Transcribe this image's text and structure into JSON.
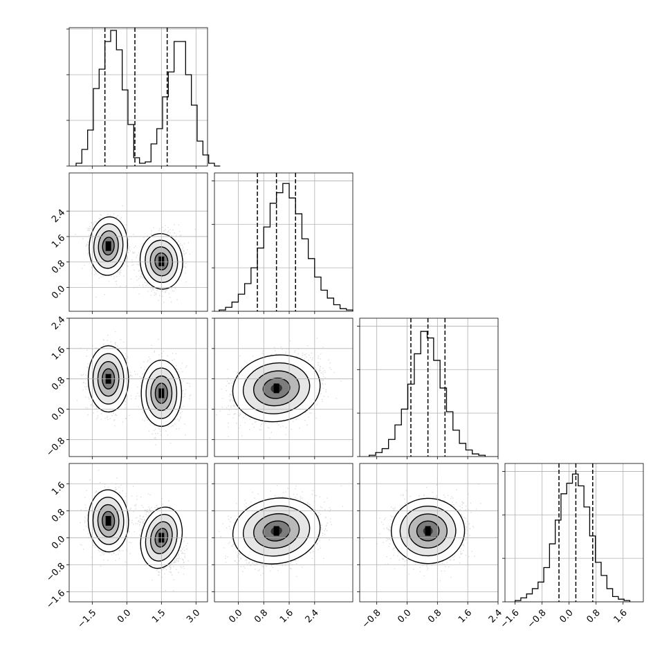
{
  "chart_data": {
    "type": "corner",
    "description_free": true,
    "ndim": 4,
    "grid": true,
    "params": [
      {
        "range": [
          -2.5,
          3.5
        ],
        "ticks": [
          -1.5,
          0.0,
          1.5,
          3.0
        ],
        "tick_labels": [
          "−1.5",
          "0.0",
          "1.5",
          "3.0"
        ],
        "quantiles": [
          -0.95,
          0.35,
          1.75
        ],
        "hist": {
          "bin_start": -2.2,
          "bin_width": 0.25,
          "counts": [
            0.02,
            0.12,
            0.26,
            0.56,
            0.7,
            0.9,
            0.98,
            0.84,
            0.55,
            0.3,
            0.06,
            0.02,
            0.03,
            0.16,
            0.27,
            0.5,
            0.68,
            0.9,
            0.9,
            0.66,
            0.44,
            0.18,
            0.08,
            0.02,
            0.0
          ]
        },
        "hist_ylim": [
          0,
          1.0
        ]
      },
      {
        "range": [
          -0.75,
          3.6
        ],
        "ticks": [
          0.0,
          0.8,
          1.6,
          2.4
        ],
        "tick_labels": [
          "0.0",
          "0.8",
          "1.6",
          "2.4"
        ],
        "quantiles": [
          0.6,
          1.2,
          1.8
        ],
        "hist": {
          "bin_start": -0.6,
          "bin_width": 0.2,
          "counts": [
            0.01,
            0.03,
            0.07,
            0.13,
            0.21,
            0.33,
            0.48,
            0.64,
            0.82,
            0.9,
            0.97,
            0.86,
            0.74,
            0.55,
            0.4,
            0.26,
            0.16,
            0.1,
            0.05,
            0.02,
            0.01
          ]
        },
        "hist_ylim": [
          0,
          1.05
        ]
      },
      {
        "range": [
          -1.25,
          2.4
        ],
        "ticks": [
          -0.8,
          0.0,
          0.8,
          1.6,
          2.4
        ],
        "tick_labels": [
          "−0.8",
          "0.0",
          "0.8",
          "1.6",
          "2.4"
        ],
        "quantiles": [
          0.1,
          0.55,
          1.0
        ],
        "hist": {
          "bin_start": -1.0,
          "bin_width": 0.17,
          "counts": [
            0.01,
            0.03,
            0.06,
            0.13,
            0.24,
            0.36,
            0.55,
            0.78,
            0.95,
            0.9,
            0.73,
            0.52,
            0.34,
            0.2,
            0.1,
            0.05,
            0.02,
            0.01
          ]
        },
        "hist_ylim": [
          0,
          1.05
        ]
      },
      {
        "range": [
          -1.9,
          2.2
        ],
        "ticks": [
          -1.6,
          -0.8,
          0.0,
          0.8,
          1.6
        ],
        "tick_labels": [
          "−1.6",
          "−0.8",
          "0.0",
          "0.8",
          "1.6"
        ],
        "quantiles": [
          -0.3,
          0.2,
          0.7
        ],
        "hist": {
          "bin_start": -1.6,
          "bin_width": 0.17,
          "counts": [
            0.01,
            0.03,
            0.06,
            0.1,
            0.15,
            0.26,
            0.44,
            0.62,
            0.82,
            0.9,
            0.97,
            0.88,
            0.72,
            0.5,
            0.3,
            0.2,
            0.1,
            0.04,
            0.02,
            0.01
          ]
        },
        "hist_ylim": [
          0,
          1.05
        ]
      }
    ],
    "pairs": [
      {
        "row": 1,
        "col": 0,
        "modes": [
          {
            "cx": -0.8,
            "cy": 1.3,
            "sx": 0.36,
            "sy": 0.4,
            "rho": -0.12,
            "n": 1700
          },
          {
            "cx": 1.5,
            "cy": 0.82,
            "sx": 0.4,
            "sy": 0.38,
            "rho": 0.15,
            "n": 1700
          }
        ]
      },
      {
        "row": 2,
        "col": 0,
        "modes": [
          {
            "cx": -0.8,
            "cy": 0.8,
            "sx": 0.38,
            "sy": 0.38,
            "rho": 0.0,
            "n": 1700
          },
          {
            "cx": 1.5,
            "cy": 0.42,
            "sx": 0.38,
            "sy": 0.38,
            "rho": 0.0,
            "n": 1700
          }
        ]
      },
      {
        "row": 3,
        "col": 0,
        "modes": [
          {
            "cx": -0.8,
            "cy": 0.5,
            "sx": 0.38,
            "sy": 0.4,
            "rho": 0.05,
            "n": 1700
          },
          {
            "cx": 1.5,
            "cy": 0.0,
            "sx": 0.38,
            "sy": 0.4,
            "rho": -0.35,
            "n": 1700
          }
        ]
      },
      {
        "row": 2,
        "col": 1,
        "modes": [
          {
            "cx": 1.2,
            "cy": 0.55,
            "sx": 0.6,
            "sy": 0.38,
            "rho": 0.25,
            "n": 3000
          }
        ]
      },
      {
        "row": 3,
        "col": 1,
        "modes": [
          {
            "cx": 1.2,
            "cy": 0.2,
            "sx": 0.6,
            "sy": 0.42,
            "rho": 0.28,
            "n": 3000
          }
        ]
      },
      {
        "row": 3,
        "col": 2,
        "modes": [
          {
            "cx": 0.55,
            "cy": 0.2,
            "sx": 0.42,
            "sy": 0.42,
            "rho": 0.05,
            "n": 3000
          }
        ]
      }
    ]
  }
}
